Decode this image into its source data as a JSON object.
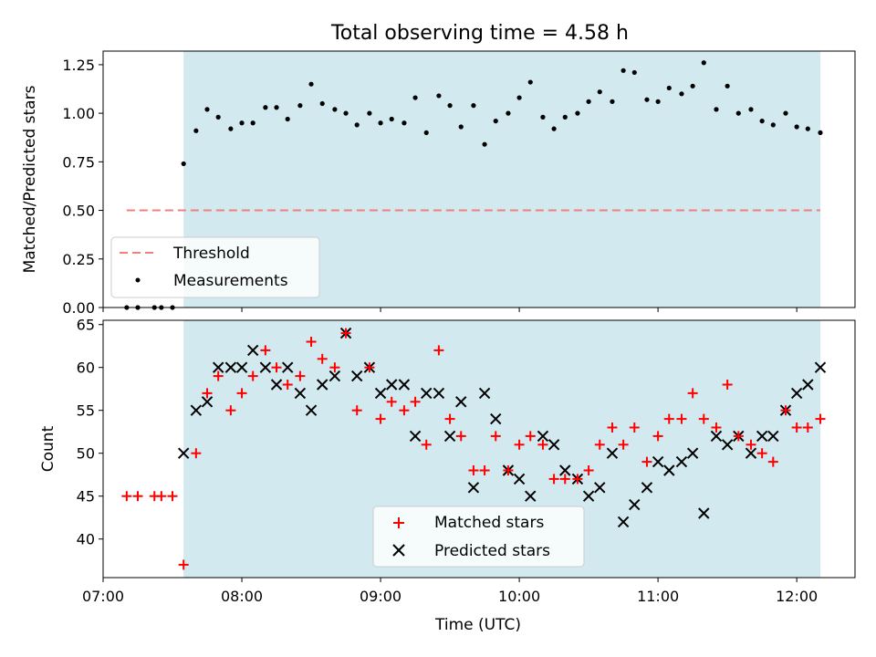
{
  "chart_data": [
    {
      "type": "scatter",
      "title": "Total observing time = 4.58 h",
      "xlabel": "",
      "ylabel": "Matched/Predicted stars",
      "ylim": [
        0,
        1.32
      ],
      "yticks": [
        "0.00",
        "0.25",
        "0.50",
        "0.75",
        "1.00",
        "1.25"
      ],
      "ytick_values": [
        0,
        0.25,
        0.5,
        0.75,
        1.0,
        1.25
      ],
      "observing_window": {
        "start": 7.58,
        "end": 12.17,
        "color": "#d3e9f0"
      },
      "threshold": {
        "name": "Threshold",
        "value": 0.5,
        "x_start": 7.17,
        "x_end": 12.17,
        "color": "#f08080"
      },
      "legend": {
        "position": "lower-left",
        "entries": [
          "Threshold",
          "Measurements"
        ]
      },
      "series": [
        {
          "name": "Measurements",
          "color": "#000000",
          "x": [
            7.17,
            7.25,
            7.37,
            7.42,
            7.5,
            7.58,
            7.67,
            7.75,
            7.83,
            7.92,
            8.0,
            8.08,
            8.17,
            8.25,
            8.33,
            8.42,
            8.5,
            8.58,
            8.67,
            8.75,
            8.83,
            8.92,
            9.0,
            9.08,
            9.17,
            9.25,
            9.33,
            9.42,
            9.5,
            9.58,
            9.67,
            9.75,
            9.83,
            9.92,
            10.0,
            10.08,
            10.17,
            10.25,
            10.33,
            10.42,
            10.5,
            10.58,
            10.67,
            10.75,
            10.83,
            10.92,
            11.0,
            11.08,
            11.17,
            11.25,
            11.33,
            11.42,
            11.5,
            11.58,
            11.67,
            11.75,
            11.83,
            11.92,
            12.0,
            12.08,
            12.17
          ],
          "y": [
            0,
            0,
            0,
            0,
            0,
            0.74,
            0.91,
            1.02,
            0.98,
            0.92,
            0.95,
            0.95,
            1.03,
            1.03,
            0.97,
            1.04,
            1.15,
            1.05,
            1.02,
            1.0,
            0.94,
            1.0,
            0.95,
            0.97,
            0.95,
            1.08,
            0.9,
            1.09,
            1.04,
            0.93,
            1.04,
            0.84,
            0.96,
            1.0,
            1.08,
            1.16,
            0.98,
            0.92,
            0.98,
            1.0,
            1.06,
            1.11,
            1.06,
            1.22,
            1.21,
            1.07,
            1.06,
            1.13,
            1.1,
            1.14,
            1.26,
            1.02,
            1.14,
            1.0,
            1.02,
            0.96,
            0.94,
            1.0,
            0.93,
            0.92,
            0.9
          ]
        }
      ]
    },
    {
      "type": "scatter",
      "title": "",
      "xlabel": "Time (UTC)",
      "ylabel": "Count",
      "ylim": [
        35.5,
        65.5
      ],
      "yticks": [
        "40",
        "45",
        "50",
        "55",
        "60",
        "65"
      ],
      "ytick_values": [
        40,
        45,
        50,
        55,
        60,
        65
      ],
      "xlim": [
        7.0,
        12.42
      ],
      "xticks": [
        "07:00",
        "08:00",
        "09:00",
        "10:00",
        "11:00",
        "12:00"
      ],
      "xtick_values": [
        7,
        8,
        9,
        10,
        11,
        12
      ],
      "observing_window": {
        "start": 7.58,
        "end": 12.17,
        "color": "#d3e9f0"
      },
      "legend": {
        "position": "lower-center",
        "entries": [
          "Matched stars",
          "Predicted stars"
        ]
      },
      "series": [
        {
          "name": "Matched stars",
          "color": "#ff0000",
          "marker": "plus",
          "x": [
            7.17,
            7.25,
            7.37,
            7.42,
            7.5,
            7.58,
            7.67,
            7.75,
            7.83,
            7.92,
            8.0,
            8.08,
            8.17,
            8.25,
            8.33,
            8.42,
            8.5,
            8.58,
            8.67,
            8.75,
            8.83,
            8.92,
            9.0,
            9.08,
            9.17,
            9.25,
            9.33,
            9.42,
            9.5,
            9.58,
            9.67,
            9.75,
            9.83,
            9.92,
            10.0,
            10.08,
            10.17,
            10.25,
            10.33,
            10.42,
            10.5,
            10.58,
            10.67,
            10.75,
            10.83,
            10.92,
            11.0,
            11.08,
            11.17,
            11.25,
            11.33,
            11.42,
            11.5,
            11.58,
            11.67,
            11.75,
            11.83,
            11.92,
            12.0,
            12.08,
            12.17
          ],
          "y": [
            45,
            45,
            45,
            45,
            45,
            37,
            50,
            57,
            59,
            55,
            57,
            59,
            62,
            60,
            58,
            59,
            63,
            61,
            60,
            64,
            55,
            60,
            54,
            56,
            55,
            56,
            51,
            62,
            54,
            52,
            48,
            48,
            52,
            48,
            51,
            52,
            51,
            47,
            47,
            47,
            48,
            51,
            53,
            51,
            53,
            49,
            52,
            54,
            54,
            57,
            54,
            53,
            58,
            52,
            51,
            50,
            49,
            55,
            53,
            53,
            54
          ]
        },
        {
          "name": "Predicted stars",
          "color": "#000000",
          "marker": "x",
          "x": [
            7.58,
            7.67,
            7.75,
            7.83,
            7.92,
            8.0,
            8.08,
            8.17,
            8.25,
            8.33,
            8.42,
            8.5,
            8.58,
            8.67,
            8.75,
            8.83,
            8.92,
            9.0,
            9.08,
            9.17,
            9.25,
            9.33,
            9.42,
            9.5,
            9.58,
            9.67,
            9.75,
            9.83,
            9.92,
            10.0,
            10.08,
            10.17,
            10.25,
            10.33,
            10.42,
            10.5,
            10.58,
            10.67,
            10.75,
            10.83,
            10.92,
            11.0,
            11.08,
            11.17,
            11.25,
            11.33,
            11.42,
            11.5,
            11.58,
            11.67,
            11.75,
            11.83,
            11.92,
            12.0,
            12.08,
            12.17
          ],
          "y": [
            50,
            55,
            56,
            60,
            60,
            60,
            62,
            60,
            58,
            60,
            57,
            55,
            58,
            59,
            64,
            59,
            60,
            57,
            58,
            58,
            52,
            57,
            57,
            52,
            56,
            46,
            57,
            54,
            48,
            47,
            45,
            52,
            51,
            48,
            47,
            45,
            46,
            50,
            42,
            44,
            46,
            49,
            48,
            49,
            50,
            43,
            52,
            51,
            52,
            50,
            52,
            52,
            55,
            57,
            58,
            60
          ]
        }
      ]
    }
  ]
}
